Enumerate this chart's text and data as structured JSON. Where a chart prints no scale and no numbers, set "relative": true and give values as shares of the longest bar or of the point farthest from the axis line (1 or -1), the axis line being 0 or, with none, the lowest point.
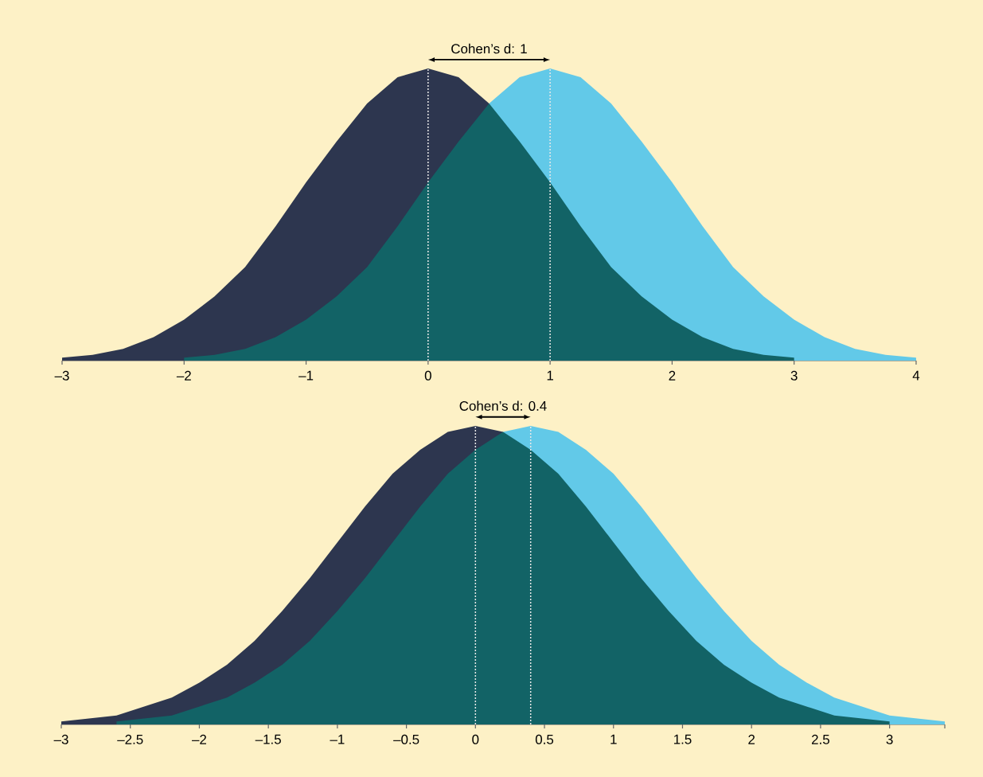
{
  "chart_data": [
    {
      "type": "area",
      "relative": true,
      "tick_labels": "x",
      "xlim": [
        -3,
        4
      ],
      "xticks": [
        {
          "value": -3,
          "label": "–3"
        },
        {
          "value": -2,
          "label": "–2"
        },
        {
          "value": -1,
          "label": "–1"
        },
        0,
        1,
        2,
        3,
        4
      ],
      "series": [
        {
          "color": "#2d364f",
          "x": [
            -3,
            -2.75,
            -2.5,
            -2.25,
            -2,
            -1.75,
            -1.5,
            -1.25,
            -1,
            -0.75,
            -0.5,
            -0.25,
            0,
            0.25,
            0.5
          ],
          "values": [
            0.01,
            0.02,
            0.04,
            0.08,
            0.14,
            0.22,
            0.32,
            0.46,
            0.61,
            0.75,
            0.88,
            0.97,
            1,
            0.97,
            0.88
          ]
        },
        {
          "color": "#62c9e8",
          "x": [
            0.5,
            0.75,
            1,
            1.25,
            1.5,
            1.75,
            2,
            2.25,
            2.5,
            2.75,
            3,
            3.25,
            3.5,
            3.75,
            4
          ],
          "values": [
            0.88,
            0.97,
            1,
            0.97,
            0.88,
            0.75,
            0.61,
            0.46,
            0.32,
            0.22,
            0.14,
            0.08,
            0.04,
            0.02,
            0.01
          ]
        },
        {
          "color": "#126366",
          "x": [
            -2,
            -1.75,
            -1.5,
            -1.25,
            -1,
            -0.75,
            -0.5,
            -0.25,
            0,
            0.25,
            0.5,
            0.75,
            1,
            1.25,
            1.5,
            1.75,
            2,
            2.25,
            2.5,
            2.75,
            3
          ],
          "values": [
            0.01,
            0.02,
            0.04,
            0.08,
            0.14,
            0.22,
            0.32,
            0.46,
            0.61,
            0.75,
            0.88,
            0.75,
            0.61,
            0.46,
            0.32,
            0.22,
            0.14,
            0.08,
            0.04,
            0.02,
            0.01
          ]
        }
      ],
      "ref_lines": [
        {
          "axis": "x",
          "value": 0,
          "color": "#e8e8e8",
          "line_style": "dotted"
        },
        {
          "axis": "x",
          "value": 1,
          "color": "#e8e8e8",
          "line_style": "dotted"
        }
      ],
      "annotations": [
        "Cohen’s d: 1"
      ]
    },
    {
      "type": "area",
      "relative": true,
      "tick_labels": "x",
      "xlim": [
        -3,
        3.4
      ],
      "xticks": [
        {
          "value": -3,
          "label": "–3"
        },
        {
          "value": -2.5,
          "label": "–2.5"
        },
        {
          "value": -2,
          "label": "–2"
        },
        {
          "value": -1.5,
          "label": "–1.5"
        },
        {
          "value": -1,
          "label": "–1"
        },
        {
          "value": -0.5,
          "label": "–0.5"
        },
        0,
        0.5,
        1,
        1.5,
        2,
        2.5,
        3,
        {
          "value": 3.4,
          "label": null
        }
      ],
      "series": [
        {
          "color": "#2d364f",
          "x": [
            -3,
            -2.8,
            -2.6,
            -2.4,
            -2.2,
            -2,
            -1.8,
            -1.6,
            -1.4,
            -1.2,
            -1,
            -0.8,
            -0.6,
            -0.4,
            -0.2,
            0,
            0.2
          ],
          "values": [
            0.01,
            0.02,
            0.03,
            0.06,
            0.09,
            0.14,
            0.2,
            0.28,
            0.38,
            0.49,
            0.61,
            0.73,
            0.84,
            0.92,
            0.98,
            1,
            0.98
          ]
        },
        {
          "color": "#62c9e8",
          "x": [
            0.2,
            0.4,
            0.6,
            0.8,
            1,
            1.2,
            1.4,
            1.6,
            1.8,
            2,
            2.2,
            2.4,
            2.6,
            2.8,
            3,
            3.2,
            3.4
          ],
          "values": [
            0.98,
            1,
            0.98,
            0.92,
            0.84,
            0.73,
            0.61,
            0.49,
            0.38,
            0.28,
            0.2,
            0.14,
            0.09,
            0.06,
            0.03,
            0.02,
            0.01
          ]
        },
        {
          "color": "#126366",
          "x": [
            -2.6,
            -2.4,
            -2.2,
            -2,
            -1.8,
            -1.6,
            -1.4,
            -1.2,
            -1,
            -0.8,
            -0.6,
            -0.4,
            -0.2,
            0,
            0.2,
            0.4,
            0.6,
            0.8,
            1,
            1.2,
            1.4,
            1.6,
            1.8,
            2,
            2.2,
            2.4,
            2.6,
            2.8,
            3
          ],
          "values": [
            0.01,
            0.02,
            0.03,
            0.06,
            0.09,
            0.14,
            0.2,
            0.28,
            0.38,
            0.49,
            0.61,
            0.73,
            0.84,
            0.92,
            0.98,
            0.92,
            0.84,
            0.73,
            0.61,
            0.49,
            0.38,
            0.28,
            0.2,
            0.14,
            0.09,
            0.06,
            0.03,
            0.02,
            0.01
          ]
        }
      ],
      "ref_lines": [
        {
          "axis": "x",
          "value": 0,
          "color": "#e8e8e8",
          "line_style": "dotted"
        },
        {
          "axis": "x",
          "value": 0.4,
          "color": "#e8e8e8",
          "line_style": "dotted"
        }
      ],
      "annotations": [
        "Cohen’s d: 0.4"
      ]
    }
  ]
}
